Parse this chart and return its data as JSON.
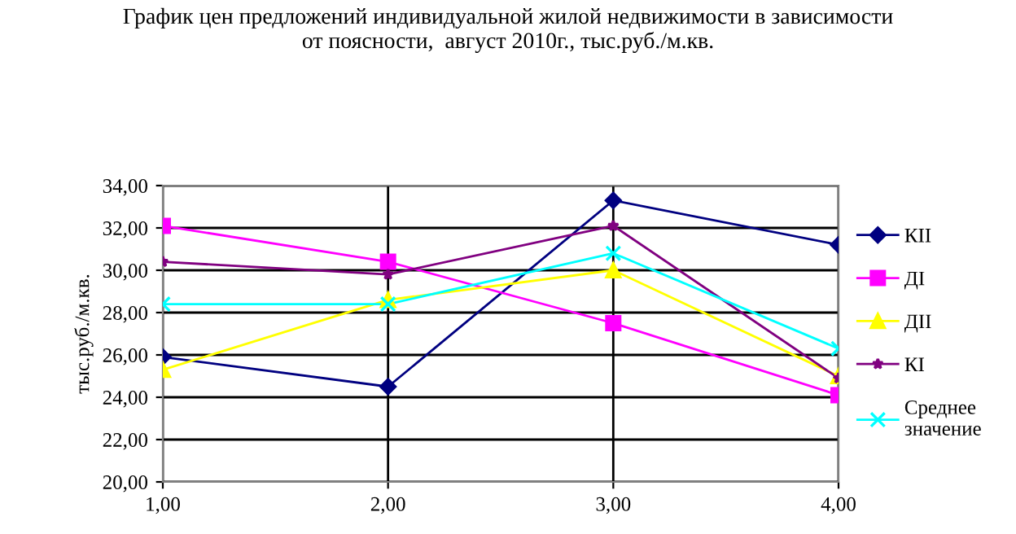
{
  "chart_data": {
    "type": "line",
    "title": "График цен предложений индивидуальной жилой недвижимости в зависимости\nот поясности,  август 2010г., тыс.руб./м.кв.",
    "ylabel": "тыс.руб./м.кв.",
    "x": [
      1,
      2,
      3,
      4
    ],
    "series": [
      {
        "name": "КII",
        "color": "#000080",
        "marker": "diamond",
        "values": [
          25.9,
          24.5,
          33.3,
          31.2
        ]
      },
      {
        "name": "ДI",
        "color": "#ff00ff",
        "marker": "square",
        "values": [
          32.1,
          30.4,
          27.5,
          24.1
        ]
      },
      {
        "name": "ДII",
        "color": "#ffff00",
        "marker": "triangle",
        "values": [
          25.3,
          28.6,
          30.0,
          25.0
        ]
      },
      {
        "name": "КI",
        "color": "#800080",
        "marker": "star",
        "values": [
          30.4,
          29.8,
          32.1,
          24.9
        ]
      },
      {
        "name": "Среднее\nзначение",
        "color": "#00ffff",
        "marker": "cross",
        "values": [
          28.4,
          28.4,
          30.8,
          26.3
        ]
      }
    ],
    "xlim": [
      1,
      4
    ],
    "xticks": [
      {
        "value": 1,
        "label": "1,00"
      },
      {
        "value": 2,
        "label": "2,00"
      },
      {
        "value": 3,
        "label": "3,00"
      },
      {
        "value": 4,
        "label": "4,00"
      }
    ],
    "ylim": [
      20,
      34
    ],
    "yticks": [
      {
        "value": 20,
        "label": "20,00"
      },
      {
        "value": 22,
        "label": "22,00"
      },
      {
        "value": 24,
        "label": "24,00"
      },
      {
        "value": 26,
        "label": "26,00"
      },
      {
        "value": 28,
        "label": "28,00"
      },
      {
        "value": 30,
        "label": "30,00"
      },
      {
        "value": 32,
        "label": "32,00"
      },
      {
        "value": 34,
        "label": "34,00"
      }
    ],
    "grid": true,
    "legend": "right",
    "line_style": "solid"
  }
}
